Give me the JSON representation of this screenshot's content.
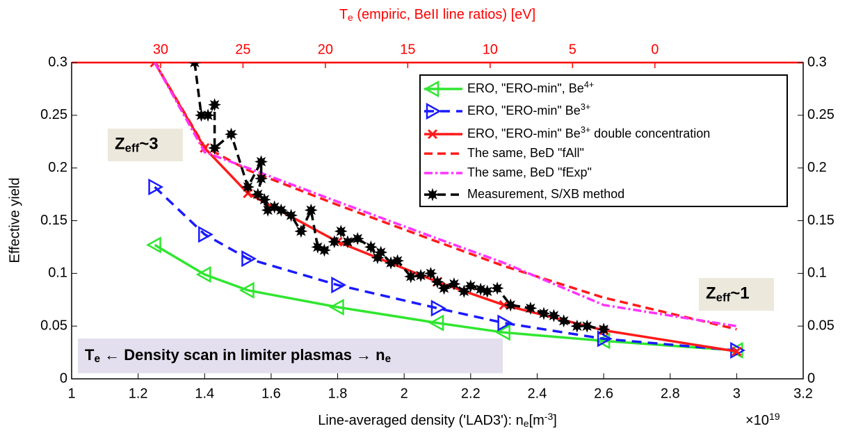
{
  "chart_data": {
    "type": "line",
    "ylabel": "Effective yield",
    "xlabel": [
      {
        "text": "Line-averaged density ('LAD3'): n"
      },
      {
        "text": "e",
        "pos": "sub"
      },
      {
        "text": "[m"
      },
      {
        "text": "-3",
        "pos": "super"
      },
      {
        "text": "]"
      }
    ],
    "x_multiplier": [
      {
        "text": "×10"
      },
      {
        "text": "19",
        "pos": "super"
      }
    ],
    "x2label": [
      {
        "text": "T"
      },
      {
        "text": "e",
        "pos": "sub"
      },
      {
        "text": " (empiric, BeII line ratios) [eV]"
      }
    ],
    "x2color": "#ff0000",
    "xlim": [
      1,
      3.2
    ],
    "xticks": [
      1,
      1.2,
      1.4,
      1.6,
      1.8,
      2,
      2.2,
      2.4,
      2.6,
      2.8,
      3,
      3.2
    ],
    "x2lim": [
      35.4,
      -9
    ],
    "x2ticks": [
      30,
      25,
      20,
      15,
      10,
      5,
      0
    ],
    "ylim": [
      0,
      0.3
    ],
    "yticks": [
      0,
      0.05,
      0.1,
      0.15,
      0.2,
      0.25,
      0.3
    ],
    "right_axis_ticks": true,
    "series": [
      {
        "name": [
          {
            "text": "ERO, \"ERO-min\", Be"
          },
          {
            "text": "4+",
            "pos": "super"
          }
        ],
        "color": "#2fe62f",
        "marker": "triangle-left",
        "dash": "",
        "x": [
          1.25,
          1.4,
          1.53,
          1.8,
          2.1,
          2.3,
          2.6,
          3.0
        ],
        "values": [
          0.127,
          0.099,
          0.084,
          0.068,
          0.053,
          0.044,
          0.036,
          0.027
        ]
      },
      {
        "name": [
          {
            "text": "ERO, \"ERO-min\" Be"
          },
          {
            "text": "3+",
            "pos": "super"
          }
        ],
        "color": "#1a1aff",
        "marker": "triangle-right",
        "dash": "14 9",
        "x": [
          1.25,
          1.4,
          1.53,
          1.8,
          2.1,
          2.3,
          2.6,
          3.0
        ],
        "values": [
          0.182,
          0.137,
          0.114,
          0.089,
          0.067,
          0.053,
          0.038,
          0.027
        ]
      },
      {
        "name": [
          {
            "text": "ERO, \"ERO-min\" Be"
          },
          {
            "text": "3+",
            "pos": "super"
          },
          {
            "text": " double concentration"
          }
        ],
        "color": "#ff1a1a",
        "marker": "x",
        "dash": "",
        "x": [
          1.25,
          1.4,
          1.53,
          1.8,
          2.1,
          2.3,
          2.6,
          3.0
        ],
        "values": [
          0.3,
          0.219,
          0.176,
          0.13,
          0.092,
          0.07,
          0.046,
          0.026
        ]
      },
      {
        "name": [
          {
            "text": "The same, BeD \"fAll\""
          }
        ],
        "color": "#ff1a1a",
        "marker": "",
        "dash": "12 7",
        "x": [
          1.25,
          1.4,
          1.53,
          1.8,
          2.1,
          2.3,
          2.6,
          3.0
        ],
        "values": [
          0.3,
          0.22,
          0.198,
          0.165,
          0.13,
          0.107,
          0.077,
          0.047
        ]
      },
      {
        "name": [
          {
            "text": "The same, BeD \"fExp\""
          }
        ],
        "color": "#ff33ff",
        "marker": "",
        "dash": "12 4 3 4",
        "x": [
          1.25,
          1.4,
          1.53,
          1.8,
          2.1,
          2.3,
          2.6,
          3.0
        ],
        "values": [
          0.3,
          0.215,
          0.2,
          0.168,
          0.133,
          0.11,
          0.07,
          0.05
        ]
      },
      {
        "name": [
          {
            "text": "Measurement, S/XB method"
          }
        ],
        "color": "#000000",
        "marker": "star",
        "dash": "12 7",
        "x": [
          1.37,
          1.39,
          1.41,
          1.43,
          1.43,
          1.48,
          1.53,
          1.57,
          1.57,
          1.56,
          1.58,
          1.59,
          1.61,
          1.63,
          1.66,
          1.69,
          1.72,
          1.74,
          1.76,
          1.79,
          1.81,
          1.83,
          1.86,
          1.9,
          1.92,
          1.93,
          1.96,
          1.98,
          2.02,
          2.05,
          2.08,
          2.1,
          2.12,
          2.15,
          2.18,
          2.2,
          2.23,
          2.25,
          2.28,
          2.32,
          2.38,
          2.42,
          2.45,
          2.48,
          2.52,
          2.55,
          2.6
        ],
        "values": [
          0.3,
          0.25,
          0.25,
          0.26,
          0.219,
          0.232,
          0.182,
          0.206,
          0.19,
          0.175,
          0.17,
          0.16,
          0.163,
          0.16,
          0.155,
          0.14,
          0.16,
          0.125,
          0.122,
          0.13,
          0.14,
          0.13,
          0.133,
          0.125,
          0.115,
          0.12,
          0.11,
          0.112,
          0.097,
          0.098,
          0.1,
          0.092,
          0.086,
          0.09,
          0.083,
          0.088,
          0.085,
          0.083,
          0.086,
          0.07,
          0.067,
          0.062,
          0.06,
          0.055,
          0.05,
          0.05,
          0.047
        ]
      }
    ],
    "annotations": [
      {
        "parts": [
          {
            "text": "Z"
          },
          {
            "text": "eff",
            "pos": "sub"
          },
          {
            "text": "~3"
          }
        ],
        "background": "#ece8dc"
      },
      {
        "parts": [
          {
            "text": "Z"
          },
          {
            "text": "eff",
            "pos": "sub"
          },
          {
            "text": "~1"
          }
        ],
        "background": "#ece8dc"
      },
      {
        "parts": [
          {
            "text": "T"
          },
          {
            "text": "e",
            "pos": "sub"
          },
          {
            "text": " ← Density scan in limiter plasmas → n"
          },
          {
            "text": "e",
            "pos": "sub"
          }
        ],
        "background": "#e3dfee"
      }
    ]
  }
}
